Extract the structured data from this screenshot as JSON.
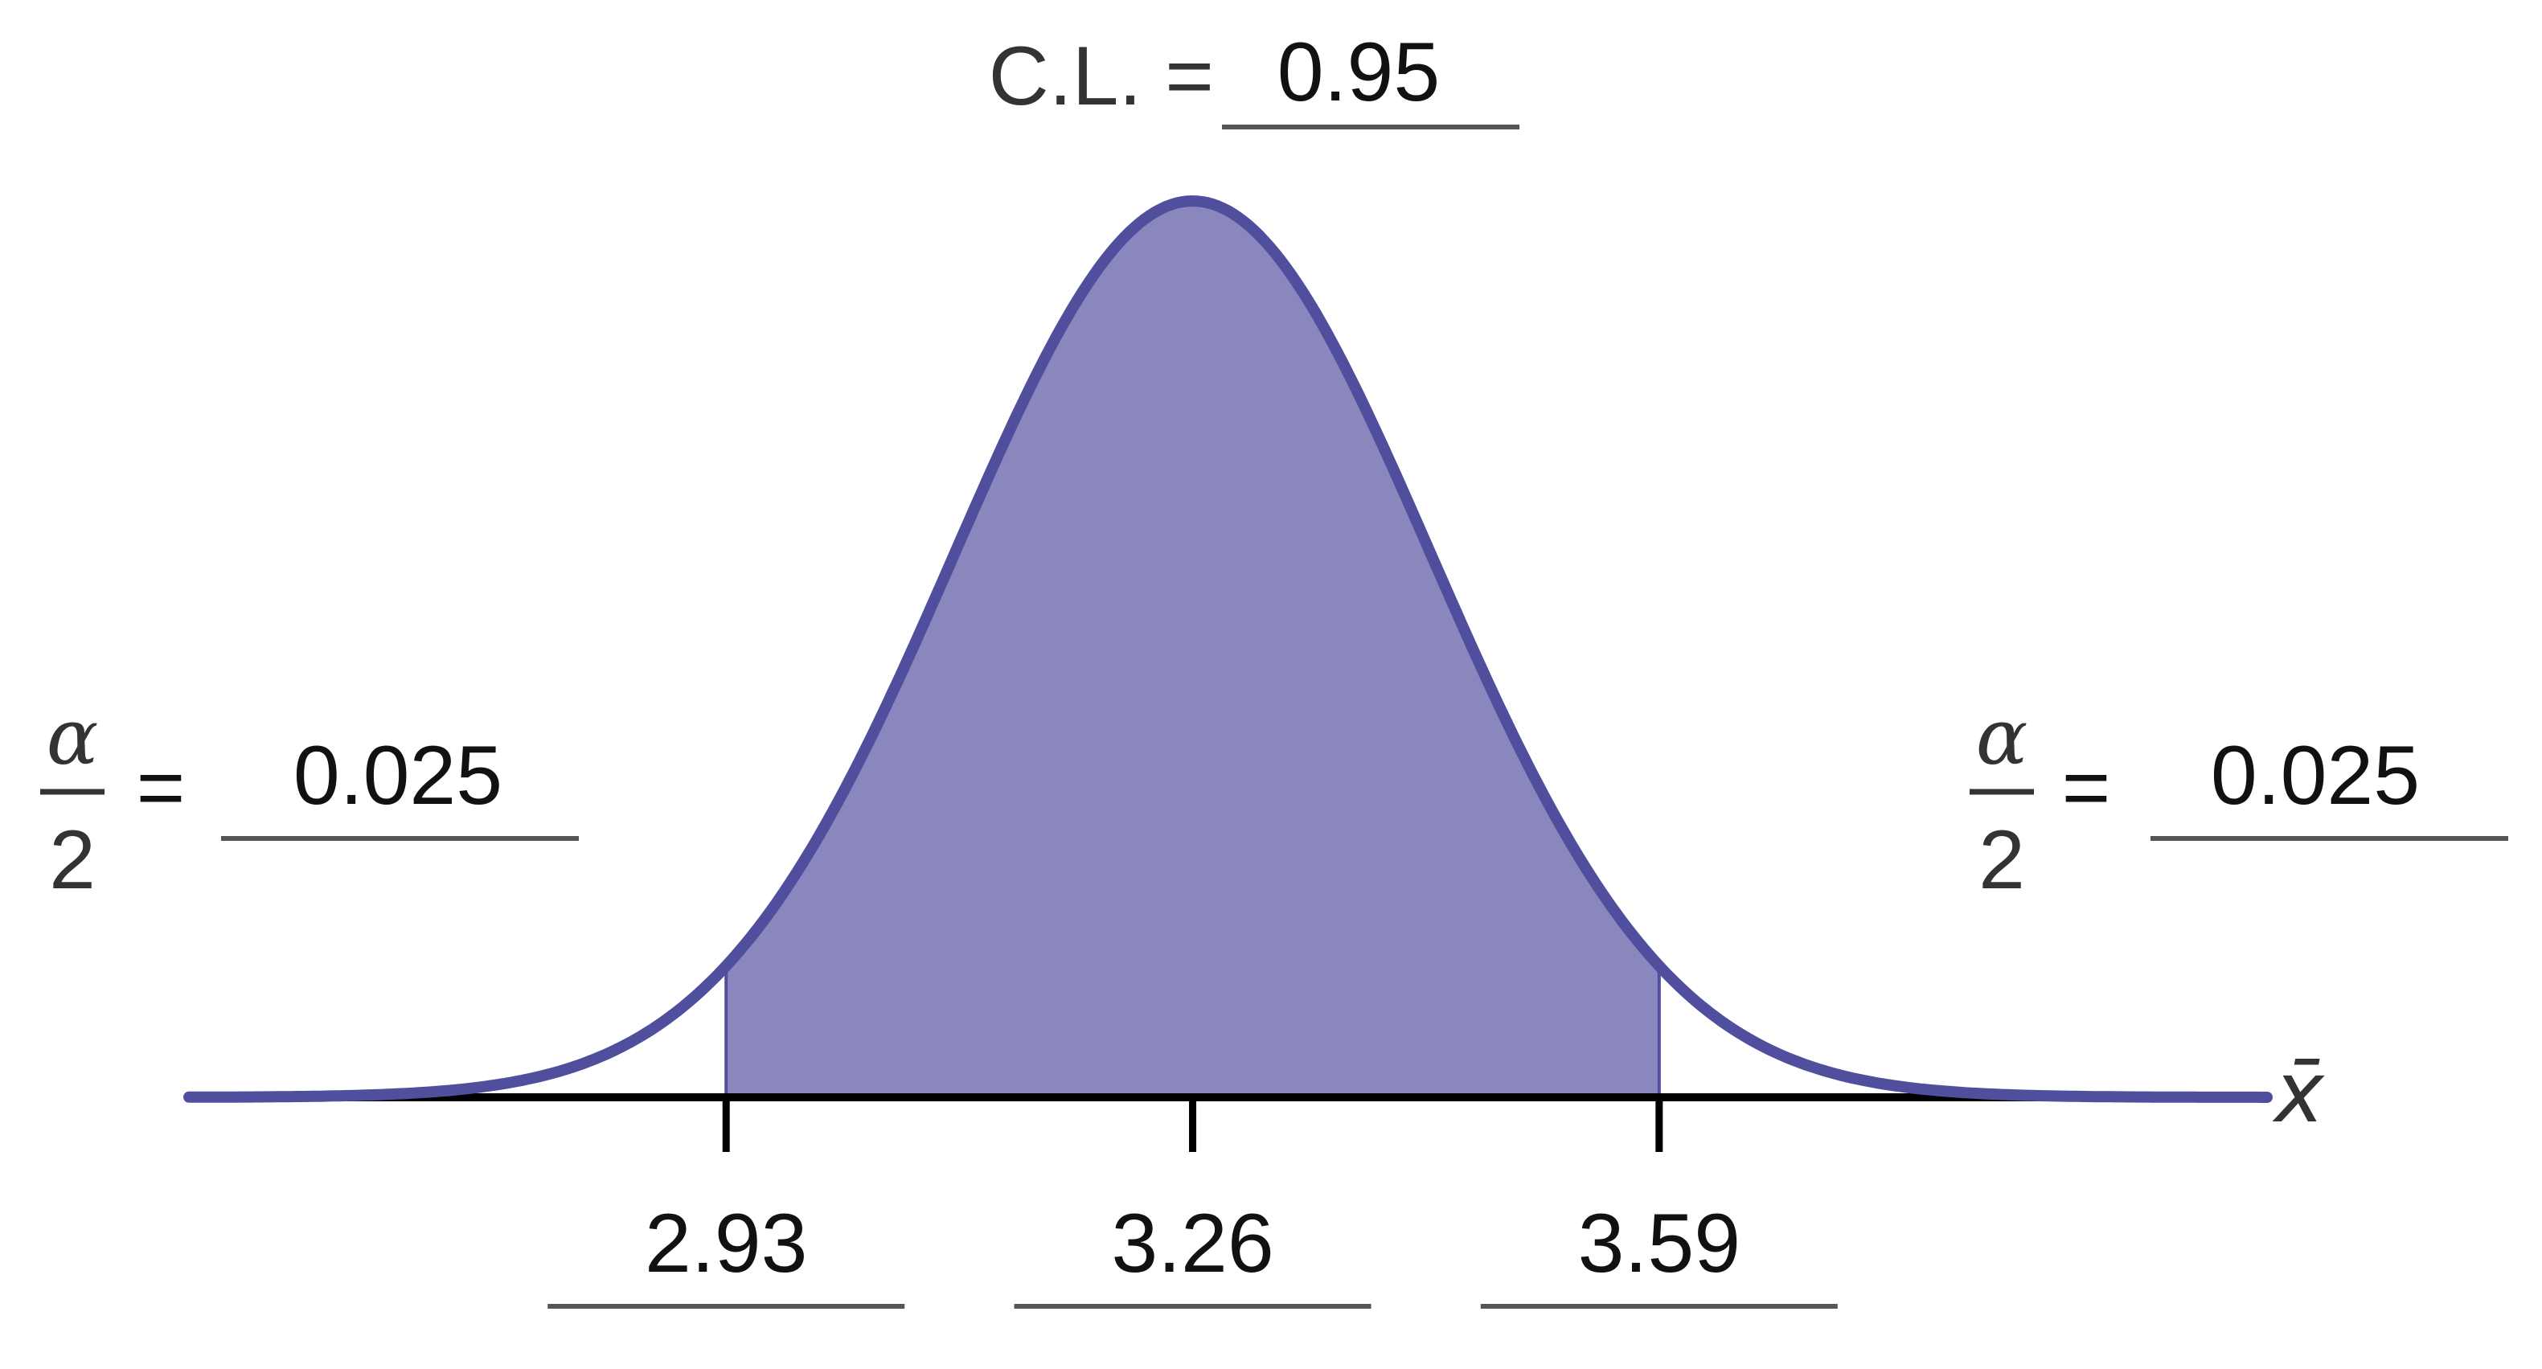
{
  "chart_data": {
    "type": "area",
    "title": "",
    "distribution": "normal",
    "mean": 3.26,
    "std_dev": 0.1684,
    "xlim": [
      2.55,
      4.02
    ],
    "shaded_interval": [
      2.93,
      3.59
    ],
    "x_ticks": [
      2.93,
      3.26,
      3.59
    ],
    "tick_labels": [
      "2.93",
      "3.26",
      "3.59"
    ],
    "xlabel": "x̄",
    "confidence_level": {
      "prefix": "C.L. =",
      "value": "0.95"
    },
    "left_tail": {
      "alpha": "α",
      "denominator": "2",
      "equals": "=",
      "value": "0.025"
    },
    "right_tail": {
      "alpha": "α",
      "denominator": "2",
      "equals": "=",
      "value": "0.025"
    },
    "colors": {
      "curve": "#4f4f9d",
      "fill": "#8a87be",
      "axis": "#000000",
      "answer_line": "#555555",
      "text": "#111111"
    }
  }
}
